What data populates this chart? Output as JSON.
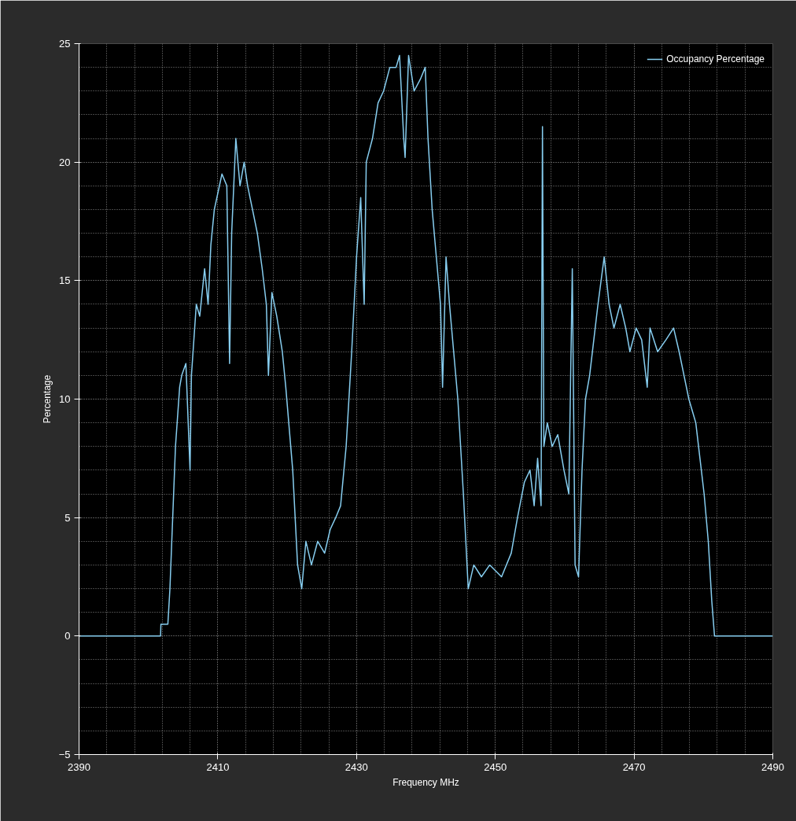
{
  "chart_data": {
    "type": "line",
    "xlabel": "Frequency MHz",
    "ylabel": "Percentage",
    "x": [
      2390,
      2401.75,
      2401.8,
      2402.8,
      2403.1,
      2403.9,
      2404.5,
      2404.8,
      2405.4,
      2406,
      2406.2,
      2406.9,
      2407.4,
      2408.1,
      2408.6,
      2409,
      2409.5,
      2410.6,
      2411.3,
      2411.7,
      2412,
      2412.6,
      2413.2,
      2413.8,
      2414.3,
      2415,
      2415.7,
      2416.4,
      2417,
      2417.3,
      2417.8,
      2418.5,
      2419.3,
      2419.8,
      2420.8,
      2421.5,
      2422.1,
      2422.7,
      2423.5,
      2424.4,
      2425.4,
      2426.2,
      2427,
      2427.7,
      2428.5,
      2429.3,
      2430,
      2430.6,
      2431.1,
      2431.4,
      2432.3,
      2433.1,
      2433.9,
      2434.8,
      2435.7,
      2436.2,
      2436.8,
      2437,
      2437.5,
      2438.3,
      2439.2,
      2439.9,
      2440.3,
      2440.9,
      2441.5,
      2442.1,
      2442.4,
      2442.9,
      2443.4,
      2444,
      2444.6,
      2445.4,
      2446.1,
      2446.9,
      2448,
      2449.2,
      2450.9,
      2452.3,
      2453.2,
      2454.2,
      2455,
      2455.6,
      2456.1,
      2456.6,
      2456.8,
      2457,
      2457.5,
      2458.2,
      2459,
      2459.9,
      2460.6,
      2461.1,
      2461.5,
      2462,
      2462.5,
      2463,
      2463.6,
      2464.2,
      2464.8,
      2465.7,
      2466.4,
      2467.1,
      2468,
      2468.8,
      2469.4,
      2470.3,
      2471.1,
      2471.9,
      2472.3,
      2473.4,
      2474.6,
      2475.7,
      2476.5,
      2477.2,
      2477.9,
      2478.4,
      2478.9,
      2479.5,
      2480.1,
      2480.7,
      2481.2,
      2481.6,
      2490
    ],
    "series": [
      {
        "name": "Occupancy Percentage",
        "color": "#87cef0",
        "values": [
          0,
          0,
          0.5,
          0.5,
          2,
          8,
          10.5,
          11,
          11.5,
          7,
          11,
          14,
          13.5,
          15.5,
          14,
          16.5,
          18,
          19.5,
          19,
          11.5,
          17,
          21,
          19,
          20,
          19,
          18,
          17,
          15.5,
          14,
          11,
          14.5,
          13.5,
          12,
          10.5,
          7,
          3,
          2,
          4,
          3,
          4,
          3.5,
          4.5,
          5,
          5.5,
          8,
          12,
          16,
          18.5,
          14,
          20,
          21,
          22.5,
          23,
          24,
          24,
          24.5,
          21,
          20.2,
          24.5,
          23,
          23.5,
          24,
          21,
          18,
          16,
          14,
          10.5,
          16,
          14,
          12,
          10,
          6,
          2,
          3,
          2.5,
          3,
          2.5,
          3.5,
          5,
          6.5,
          7,
          5.5,
          7.5,
          5.5,
          21.5,
          8,
          9,
          8,
          8.5,
          7,
          6,
          15.5,
          3,
          2.5,
          7,
          10,
          11,
          12.5,
          14,
          16,
          14,
          13,
          14,
          13,
          12,
          13,
          12.5,
          10.5,
          13,
          12,
          12.5,
          13,
          12,
          11,
          10,
          9.5,
          9,
          7.5,
          6,
          4,
          1.5,
          0,
          0
        ]
      }
    ],
    "xlim": [
      2390,
      2490
    ],
    "ylim": [
      -5,
      25
    ],
    "xticks": [
      2390,
      2410,
      2430,
      2450,
      2470,
      2490
    ],
    "yticks": [
      -5,
      0,
      5,
      10,
      15,
      20,
      25
    ],
    "grid": true,
    "legend": "top right",
    "marker": "none",
    "line_style": "solid"
  }
}
